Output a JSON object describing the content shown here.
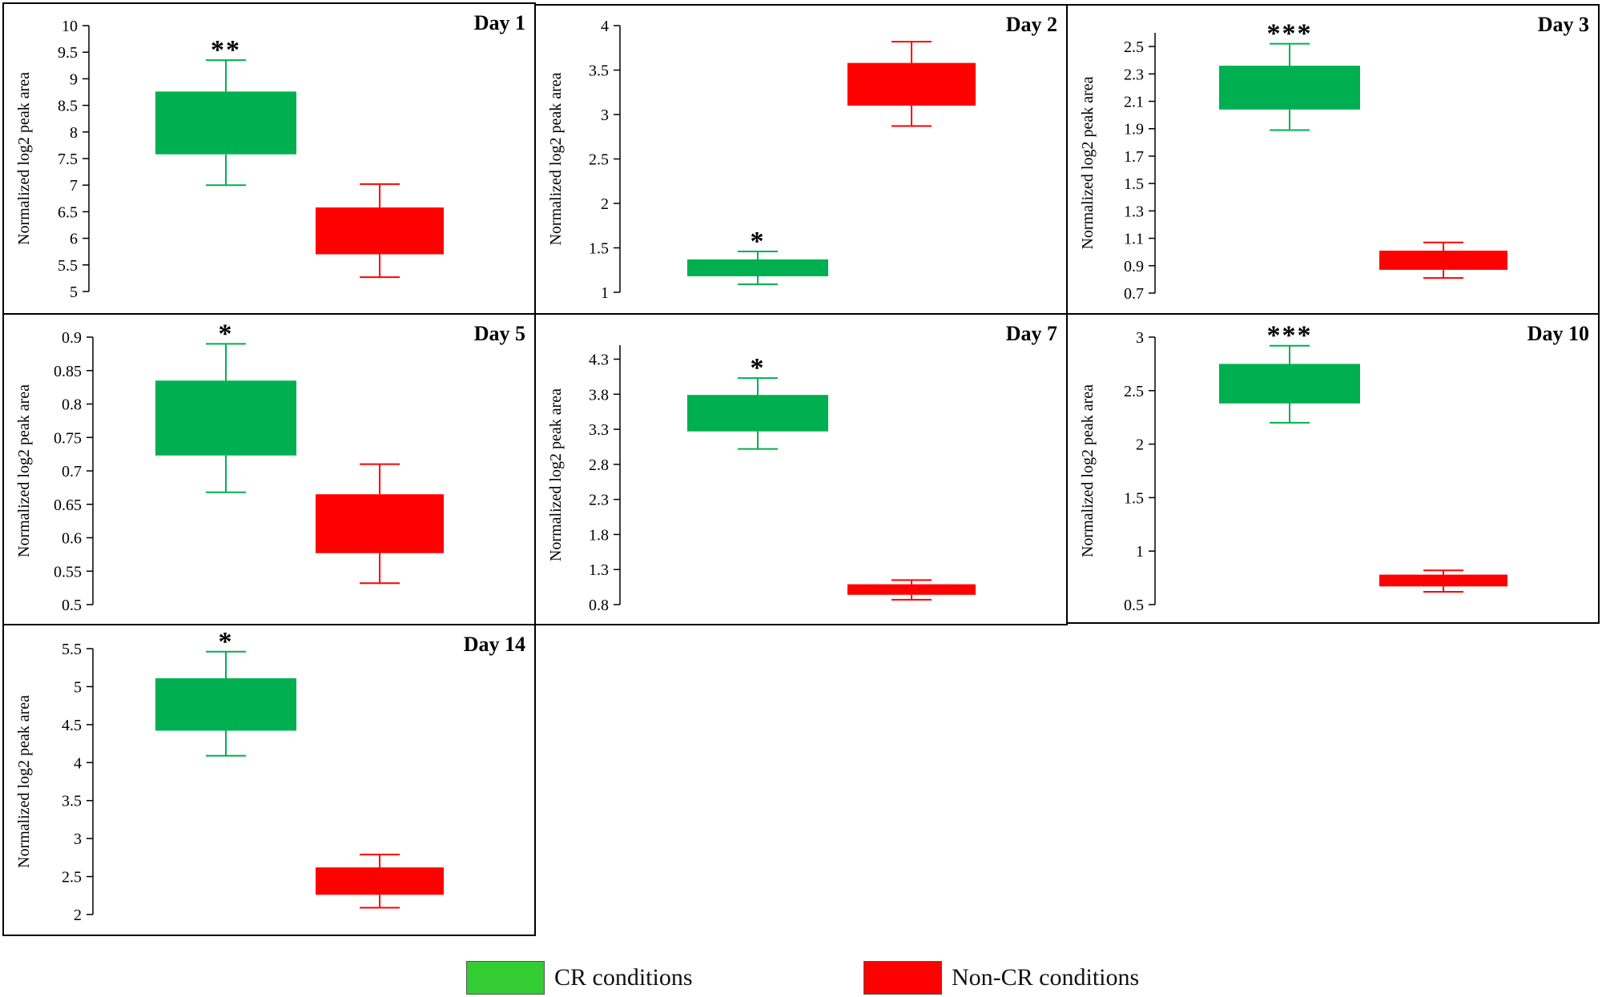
{
  "chart_data": [
    {
      "type": "box",
      "title": "Day 1",
      "ylabel": "Normalized log2 peak area",
      "ylim": [
        5,
        10
      ],
      "yticks": [
        5,
        5.5,
        6,
        6.5,
        7,
        7.5,
        8,
        8.5,
        9,
        9.5,
        10
      ],
      "boxes": [
        {
          "group": "CR conditions",
          "min": 7.0,
          "q1": 7.58,
          "q3": 8.76,
          "max": 9.35,
          "significance": "**"
        },
        {
          "group": "Non-CR conditions",
          "min": 5.27,
          "q1": 5.7,
          "q3": 6.58,
          "max": 7.02,
          "significance": ""
        }
      ]
    },
    {
      "type": "box",
      "title": "Day 2",
      "ylabel": "Normalized log2 peak area",
      "ylim": [
        1,
        4
      ],
      "yticks": [
        1,
        1.5,
        2,
        2.5,
        3,
        3.5,
        4
      ],
      "boxes": [
        {
          "group": "CR conditions",
          "min": 1.09,
          "q1": 1.18,
          "q3": 1.37,
          "max": 1.46,
          "significance": "*"
        },
        {
          "group": "Non-CR conditions",
          "min": 2.87,
          "q1": 3.1,
          "q3": 3.58,
          "max": 3.82,
          "significance": ""
        }
      ]
    },
    {
      "type": "box",
      "title": "Day 3",
      "ylabel": "Normalized log2 peak area",
      "ylim": [
        0.7,
        2.6
      ],
      "yticks": [
        0.7,
        0.9,
        1.1,
        1.3,
        1.5,
        1.7,
        1.9,
        2.1,
        2.3,
        2.5
      ],
      "boxes": [
        {
          "group": "CR conditions",
          "min": 1.89,
          "q1": 2.04,
          "q3": 2.36,
          "max": 2.52,
          "significance": "***"
        },
        {
          "group": "Non-CR conditions",
          "min": 0.81,
          "q1": 0.87,
          "q3": 1.01,
          "max": 1.07,
          "significance": ""
        }
      ]
    },
    {
      "type": "box",
      "title": "Day 5",
      "ylabel": "Normalized log2 peak area",
      "ylim": [
        0.5,
        0.9
      ],
      "yticks": [
        0.5,
        0.55,
        0.6,
        0.65,
        0.7,
        0.75,
        0.8,
        0.85,
        0.9
      ],
      "boxes": [
        {
          "group": "CR conditions",
          "min": 0.668,
          "q1": 0.723,
          "q3": 0.835,
          "max": 0.89,
          "significance": "*"
        },
        {
          "group": "Non-CR conditions",
          "min": 0.532,
          "q1": 0.577,
          "q3": 0.665,
          "max": 0.71,
          "significance": ""
        }
      ]
    },
    {
      "type": "box",
      "title": "Day 7",
      "ylabel": "Normalized log2 peak area",
      "ylim": [
        0.8,
        4.5
      ],
      "yticks": [
        0.8,
        1.3,
        1.8,
        2.3,
        2.8,
        3.3,
        3.8,
        4.3
      ],
      "boxes": [
        {
          "group": "CR conditions",
          "min": 3.02,
          "q1": 3.27,
          "q3": 3.79,
          "max": 4.03,
          "significance": "*"
        },
        {
          "group": "Non-CR conditions",
          "min": 0.87,
          "q1": 0.94,
          "q3": 1.09,
          "max": 1.15,
          "significance": ""
        }
      ]
    },
    {
      "type": "box",
      "title": "Day 10",
      "ylabel": "Normalized log2 peak area",
      "ylim": [
        0.5,
        3
      ],
      "yticks": [
        0.5,
        1,
        1.5,
        2,
        2.5,
        3
      ],
      "boxes": [
        {
          "group": "CR conditions",
          "min": 2.2,
          "q1": 2.38,
          "q3": 2.75,
          "max": 2.92,
          "significance": "***"
        },
        {
          "group": "Non-CR conditions",
          "min": 0.62,
          "q1": 0.67,
          "q3": 0.78,
          "max": 0.82,
          "significance": ""
        }
      ]
    },
    {
      "type": "box",
      "title": "Day 14",
      "ylabel": "Normalized log2 peak area",
      "ylim": [
        2,
        5.5
      ],
      "yticks": [
        2,
        2.5,
        3,
        3.5,
        4,
        4.5,
        5,
        5.5
      ],
      "boxes": [
        {
          "group": "CR conditions",
          "min": 4.09,
          "q1": 4.42,
          "q3": 5.11,
          "max": 5.46,
          "significance": "*"
        },
        {
          "group": "Non-CR conditions",
          "min": 2.09,
          "q1": 2.26,
          "q3": 2.62,
          "max": 2.79,
          "significance": ""
        }
      ]
    }
  ],
  "legend": [
    {
      "label": "CR conditions",
      "color": "#33cc33"
    },
    {
      "label": "Non-CR conditions",
      "color": "#ff0000"
    }
  ],
  "colors": {
    "cr_box": "#00b050",
    "noncr_box": "#ff0000"
  }
}
